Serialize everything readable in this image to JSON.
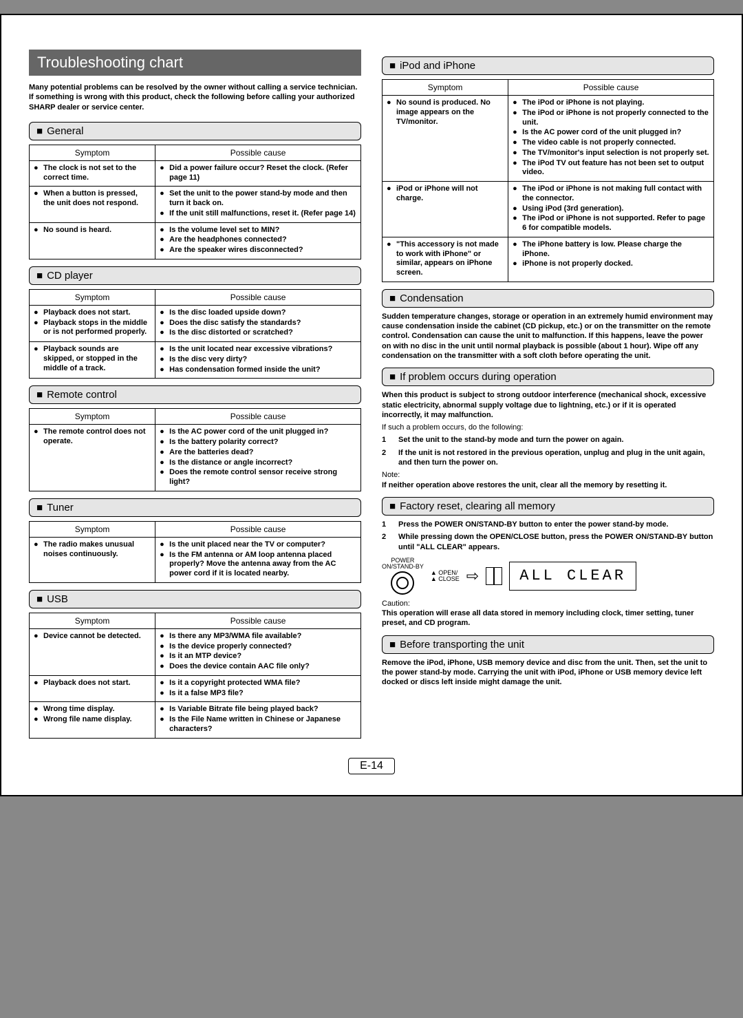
{
  "page_number": "E-14",
  "title": "Troubleshooting chart",
  "intro_lines": [
    "Many potential problems can be resolved by the owner without calling a service technician.",
    "If something is wrong with this product, check the following before calling your authorized SHARP dealer or service center."
  ],
  "table_headers": {
    "symptom": "Symptom",
    "cause": "Possible cause"
  },
  "bullet_marker": "●",
  "left_sections": [
    {
      "name": "general",
      "title": "General",
      "rows": [
        {
          "symptoms": [
            "The clock is not set to the correct time."
          ],
          "causes": [
            "Did a power failure occur? Reset the clock. (Refer page 11)"
          ]
        },
        {
          "symptoms": [
            "When a button is pressed, the unit does not respond."
          ],
          "causes": [
            "Set the unit to the power stand-by mode and then turn it back on.",
            "If the unit still malfunctions, reset it. (Refer page 14)"
          ]
        },
        {
          "symptoms": [
            "No sound is heard."
          ],
          "causes": [
            "Is the volume level set to MIN?",
            "Are the headphones connected?",
            "Are the speaker wires disconnected?"
          ]
        }
      ]
    },
    {
      "name": "cd-player",
      "title": "CD player",
      "rows": [
        {
          "symptoms": [
            "Playback does not start.",
            "Playback stops in the middle or is not performed properly."
          ],
          "causes": [
            "Is the disc loaded upside down?",
            "Does the disc satisfy the standards?",
            "Is the disc distorted or scratched?"
          ]
        },
        {
          "symptoms": [
            "Playback sounds are skipped, or stopped in the middle of a track."
          ],
          "causes": [
            "Is the unit located near excessive vibrations?",
            "Is the disc very dirty?",
            "Has condensation formed inside the unit?"
          ]
        }
      ]
    },
    {
      "name": "remote-control",
      "title": "Remote control",
      "rows": [
        {
          "symptoms": [
            "The remote control does not operate."
          ],
          "causes": [
            "Is the AC power cord of the unit plugged in?",
            "Is the battery polarity correct?",
            "Are the batteries dead?",
            "Is the distance or angle incorrect?",
            "Does the remote control sensor receive strong light?"
          ]
        }
      ]
    },
    {
      "name": "tuner",
      "title": "Tuner",
      "rows": [
        {
          "symptoms": [
            "The radio makes unusual noises continuously."
          ],
          "causes": [
            "Is the unit placed near the TV or computer?",
            "Is the FM antenna or AM loop antenna placed properly? Move the antenna away from the AC power cord if it is located nearby."
          ]
        }
      ]
    },
    {
      "name": "usb",
      "title": "USB",
      "rows": [
        {
          "symptoms": [
            "Device cannot be detected."
          ],
          "causes": [
            "Is there any MP3/WMA file available?",
            "Is the device properly connected?",
            "Is it an MTP device?",
            "Does the device contain AAC file only?"
          ]
        },
        {
          "symptoms": [
            "Playback does not start."
          ],
          "causes": [
            "Is it a copyright protected WMA file?",
            "Is it a false MP3 file?"
          ]
        },
        {
          "symptoms": [
            "Wrong time display.",
            "Wrong file name display."
          ],
          "causes": [
            "Is Variable Bitrate file being played back?",
            "Is the File Name written in Chinese or Japanese characters?"
          ]
        }
      ]
    }
  ],
  "right_sections_ipod": {
    "name": "ipod-iphone",
    "title": "iPod and iPhone",
    "rows": [
      {
        "symptoms": [
          "No sound is produced. No image appears on the TV/monitor."
        ],
        "causes": [
          "The iPod or iPhone is not playing.",
          "The iPod or iPhone is not properly connected to the unit.",
          "Is the AC power cord of the unit plugged in?",
          "The video cable is not properly connected.",
          "The TV/monitor's input selection is not properly set.",
          "The iPod TV out feature has not been set to output video."
        ]
      },
      {
        "symptoms": [
          "iPod or iPhone will not charge."
        ],
        "causes": [
          "The iPod or iPhone is not making full contact with the connector.",
          "Using iPod (3rd generation).",
          "The iPod or iPhone is not supported. Refer to page 6 for compatible models."
        ]
      },
      {
        "symptoms": [
          "\"This accessory is not made to work with iPhone\" or similar, appears on iPhone screen."
        ],
        "causes": [
          "The iPhone battery is low. Please charge the iPhone.",
          "iPhone is not properly docked."
        ]
      }
    ]
  },
  "condensation": {
    "title": "Condensation",
    "body": "Sudden temperature changes, storage or operation in an extremely humid environment may cause condensation inside the cabinet (CD pickup, etc.) or on the transmitter on the remote control. Condensation can cause the unit to malfunction. If this happens, leave the power on with no disc in the unit until normal playback is possible (about 1 hour). Wipe off any condensation on the transmitter with a soft cloth before operating the unit."
  },
  "problem_during": {
    "title": "If problem occurs during operation",
    "intro_bold": "When this product is subject to strong outdoor interference (mechanical shock, excessive static electricity, abnormal supply voltage due to lightning, etc.) or if it is operated incorrectly, it may malfunction.",
    "intro2": "If such a problem occurs, do the following:",
    "steps": [
      "Set the unit to the stand-by mode and turn the power on again.",
      "If the unit is not restored in the previous operation, unplug and plug in the unit again, and then turn the power on."
    ],
    "note_label": "Note:",
    "note": "If neither operation above restores the unit, clear all the memory by resetting it."
  },
  "factory_reset": {
    "title": "Factory reset, clearing all memory",
    "steps": [
      "Press the POWER ON/STAND-BY button to enter the power stand-by mode.",
      "While pressing down the OPEN/CLOSE button, press the POWER ON/STAND-BY button until \"ALL CLEAR\" appears."
    ],
    "diagram": {
      "power_label1": "POWER",
      "power_label2": "ON/STAND-BY",
      "open_label": "OPEN/",
      "close_label": "CLOSE",
      "arrow": "⇨",
      "lcd_text": "ALL CLEAR"
    },
    "caution_label": "Caution:",
    "caution": "This operation will erase all data stored in memory including clock, timer setting, tuner preset, and CD program."
  },
  "before_transport": {
    "title": "Before transporting the unit",
    "body": "Remove the iPod, iPhone, USB memory device and disc from the unit. Then, set the unit to the power stand-by mode. Carrying the unit with iPod, iPhone or USB memory device left docked or discs left inside might damage the unit."
  }
}
